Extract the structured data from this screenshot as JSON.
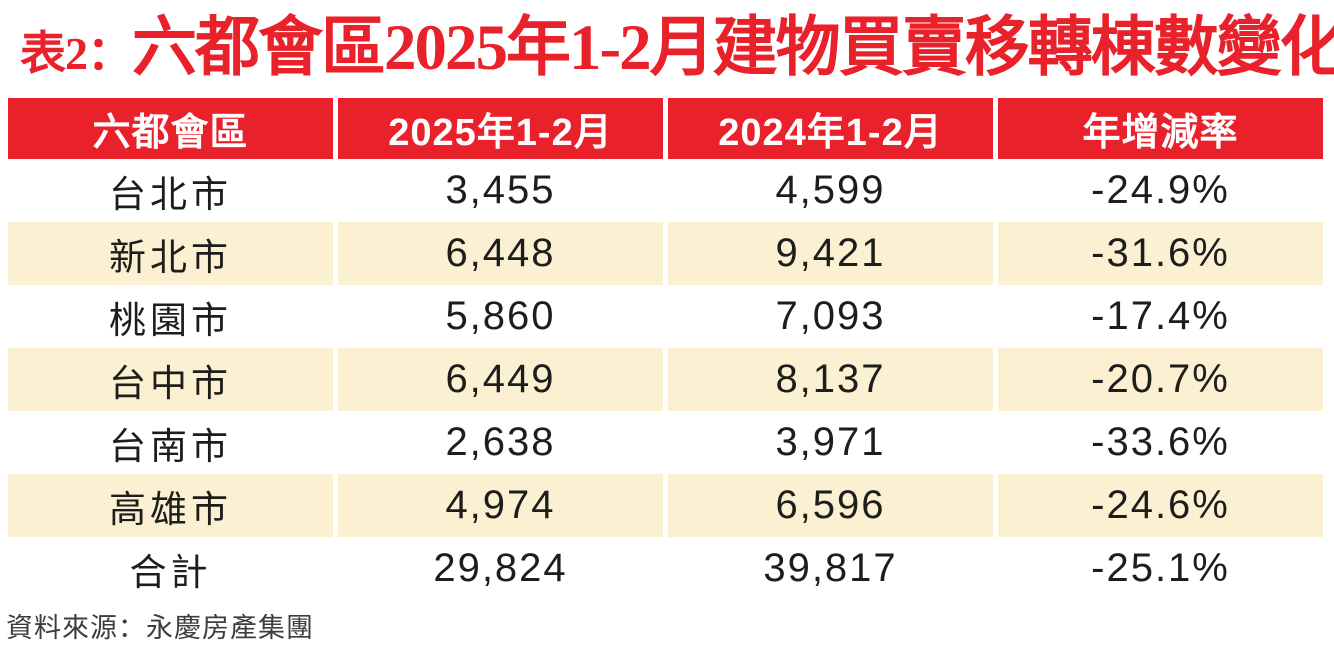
{
  "title": {
    "prefix": "表2：",
    "main": "六都會區2025年1-2月建物買賣移轉棟數變化"
  },
  "table": {
    "headers": [
      "六都會區",
      "2025年1-2月",
      "2024年1-2月",
      "年增減率"
    ],
    "rows": [
      {
        "city": "台北市",
        "y2025": "3,455",
        "y2024": "4,599",
        "yoy": "-24.9%"
      },
      {
        "city": "新北市",
        "y2025": "6,448",
        "y2024": "9,421",
        "yoy": "-31.6%"
      },
      {
        "city": "桃園市",
        "y2025": "5,860",
        "y2024": "7,093",
        "yoy": "-17.4%"
      },
      {
        "city": "台中市",
        "y2025": "6,449",
        "y2024": "8,137",
        "yoy": "-20.7%"
      },
      {
        "city": "台南市",
        "y2025": "2,638",
        "y2024": "3,971",
        "yoy": "-33.6%"
      },
      {
        "city": "高雄市",
        "y2025": "4,974",
        "y2024": "6,596",
        "yoy": "-24.6%"
      },
      {
        "city": "合計",
        "y2025": "29,824",
        "y2024": "39,817",
        "yoy": "-25.1%"
      }
    ]
  },
  "footer": {
    "source": "資料來源：永慶房產集團"
  },
  "colors": {
    "header_red": "#e9212a",
    "title_red": "#e9212a",
    "row_cream": "#fcf0d2",
    "row_white": "#ffffff",
    "text_dark": "#1d1d1b"
  },
  "chart_data": {
    "type": "table",
    "title": "表2：六都會區2025年1-2月建物買賣移轉棟數變化",
    "columns": [
      "六都會區",
      "2025年1-2月",
      "2024年1-2月",
      "年增減率"
    ],
    "rows": [
      [
        "台北市",
        3455,
        4599,
        -24.9
      ],
      [
        "新北市",
        6448,
        9421,
        -31.6
      ],
      [
        "桃園市",
        5860,
        7093,
        -17.4
      ],
      [
        "台中市",
        6449,
        8137,
        -20.7
      ],
      [
        "台南市",
        2638,
        3971,
        -33.6
      ],
      [
        "高雄市",
        4974,
        6596,
        -24.6
      ],
      [
        "合計",
        29824,
        39817,
        -25.1
      ]
    ],
    "units": {
      "y2025": "棟",
      "y2024": "棟",
      "yoy": "%"
    },
    "source": "資料來源：永慶房產集團"
  }
}
